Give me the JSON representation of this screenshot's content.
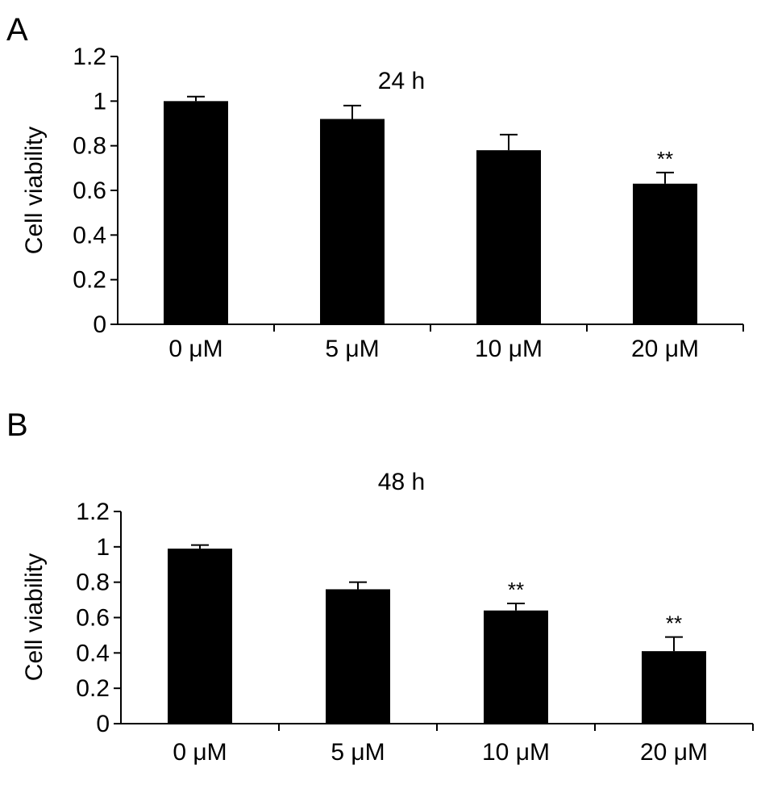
{
  "chart_data": [
    {
      "type": "bar",
      "panel": "A",
      "title": "24 h",
      "ylabel": "Cell viability",
      "xlabel": "",
      "categories": [
        "0 μM",
        "5 μM",
        "10 μM",
        "20 μM"
      ],
      "values": [
        1.0,
        0.92,
        0.78,
        0.63
      ],
      "errors": [
        0.02,
        0.06,
        0.07,
        0.05
      ],
      "annotations": [
        "",
        "",
        "",
        "**"
      ],
      "ylim": [
        0,
        1.2
      ],
      "yticks": [
        0,
        0.2,
        0.4,
        0.6,
        0.8,
        1,
        1.2
      ],
      "ytick_labels": [
        "0",
        "0.2",
        "0.4",
        "0.6",
        "0.8",
        "1",
        "1.2"
      ],
      "grid": false,
      "bar_color": "#000000"
    },
    {
      "type": "bar",
      "panel": "B",
      "title": "48 h",
      "ylabel": "Cell viability",
      "xlabel": "",
      "categories": [
        "0 μM",
        "5 μM",
        "10 μM",
        "20 μM"
      ],
      "values": [
        0.99,
        0.76,
        0.64,
        0.41
      ],
      "errors": [
        0.02,
        0.04,
        0.04,
        0.08
      ],
      "annotations": [
        "",
        "",
        "**",
        "**"
      ],
      "ylim": [
        0,
        1.2
      ],
      "yticks": [
        0,
        0.2,
        0.4,
        0.6,
        0.8,
        1,
        1.2
      ],
      "ytick_labels": [
        "0",
        "0.2",
        "0.4",
        "0.6",
        "0.8",
        "1",
        "1.2"
      ],
      "grid": false,
      "bar_color": "#000000"
    }
  ]
}
